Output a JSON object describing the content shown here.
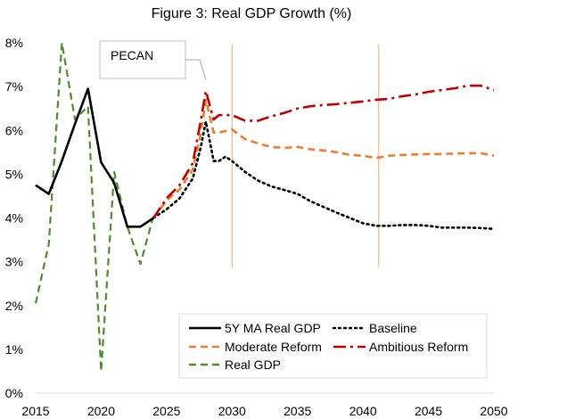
{
  "chart_data": {
    "type": "line",
    "title": "Figure 3: Real GDP Growth (%)",
    "xlabel": "",
    "ylabel": "",
    "xlim": [
      2015,
      2050
    ],
    "ylim": [
      0,
      8
    ],
    "x_ticks": [
      2015,
      2020,
      2025,
      2030,
      2035,
      2040,
      2045,
      2050
    ],
    "y_ticks": [
      0,
      1,
      2,
      3,
      4,
      5,
      6,
      7,
      8
    ],
    "y_tick_labels": [
      "0%",
      "1%",
      "2%",
      "3%",
      "4%",
      "5%",
      "6%",
      "7%",
      "8%"
    ],
    "grid": false,
    "legend_position": "bottom-right",
    "annotation": {
      "text": "PECAN",
      "points_to": [
        2028,
        7.1
      ]
    },
    "vertical_markers": [
      {
        "x": 2030,
        "color": "#f0b48c"
      },
      {
        "x": 2041.2,
        "color": "#f0b48c"
      }
    ],
    "series": [
      {
        "name": "5Y MA Real GDP",
        "color": "#000000",
        "style": "solid",
        "points": [
          [
            2015,
            4.75
          ],
          [
            2016,
            4.55
          ],
          [
            2017,
            5.3
          ],
          [
            2018,
            6.15
          ],
          [
            2019,
            6.95
          ],
          [
            2020,
            5.27
          ],
          [
            2021,
            4.8
          ],
          [
            2022,
            3.8
          ],
          [
            2023,
            3.8
          ],
          [
            2024,
            4.0
          ]
        ]
      },
      {
        "name": "Baseline",
        "color": "#000000",
        "style": "dotted",
        "points": [
          [
            2024,
            4.0
          ],
          [
            2025,
            4.2
          ],
          [
            2026,
            4.45
          ],
          [
            2027,
            4.9
          ],
          [
            2027.6,
            5.6
          ],
          [
            2028,
            6.2
          ],
          [
            2028.6,
            5.3
          ],
          [
            2029,
            5.3
          ],
          [
            2029.5,
            5.4
          ],
          [
            2030,
            5.3
          ],
          [
            2031,
            5.05
          ],
          [
            2032,
            4.85
          ],
          [
            2033,
            4.72
          ],
          [
            2034,
            4.64
          ],
          [
            2035,
            4.55
          ],
          [
            2036,
            4.38
          ],
          [
            2037,
            4.25
          ],
          [
            2038,
            4.12
          ],
          [
            2039,
            4.0
          ],
          [
            2040,
            3.88
          ],
          [
            2041,
            3.82
          ],
          [
            2042,
            3.82
          ],
          [
            2043,
            3.84
          ],
          [
            2044,
            3.84
          ],
          [
            2045,
            3.82
          ],
          [
            2046,
            3.78
          ],
          [
            2047,
            3.78
          ],
          [
            2048,
            3.78
          ],
          [
            2049,
            3.77
          ],
          [
            2050,
            3.75
          ]
        ]
      },
      {
        "name": "Moderate Reform",
        "color": "#ed7d31",
        "style": "dashed",
        "points": [
          [
            2024,
            4.0
          ],
          [
            2025,
            4.4
          ],
          [
            2026,
            4.65
          ],
          [
            2027,
            5.1
          ],
          [
            2027.6,
            5.9
          ],
          [
            2028,
            6.7
          ],
          [
            2028.6,
            5.95
          ],
          [
            2029,
            5.95
          ],
          [
            2030,
            6.02
          ],
          [
            2031,
            5.8
          ],
          [
            2032,
            5.7
          ],
          [
            2033,
            5.62
          ],
          [
            2034,
            5.6
          ],
          [
            2035,
            5.62
          ],
          [
            2036,
            5.57
          ],
          [
            2037,
            5.54
          ],
          [
            2038,
            5.5
          ],
          [
            2039,
            5.44
          ],
          [
            2040,
            5.42
          ],
          [
            2041,
            5.37
          ],
          [
            2042,
            5.42
          ],
          [
            2043,
            5.44
          ],
          [
            2044,
            5.45
          ],
          [
            2045,
            5.46
          ],
          [
            2046,
            5.46
          ],
          [
            2047,
            5.47
          ],
          [
            2048,
            5.48
          ],
          [
            2049,
            5.48
          ],
          [
            2050,
            5.42
          ]
        ]
      },
      {
        "name": "Ambitious Reform",
        "color": "#c00000",
        "style": "dashdot",
        "points": [
          [
            2024,
            4.0
          ],
          [
            2025,
            4.45
          ],
          [
            2026,
            4.75
          ],
          [
            2027,
            5.25
          ],
          [
            2027.6,
            6.2
          ],
          [
            2028,
            6.9
          ],
          [
            2028.6,
            6.25
          ],
          [
            2029,
            6.35
          ],
          [
            2030,
            6.35
          ],
          [
            2031,
            6.22
          ],
          [
            2032,
            6.22
          ],
          [
            2033,
            6.32
          ],
          [
            2034,
            6.4
          ],
          [
            2035,
            6.5
          ],
          [
            2036,
            6.55
          ],
          [
            2037,
            6.58
          ],
          [
            2038,
            6.6
          ],
          [
            2039,
            6.63
          ],
          [
            2040,
            6.66
          ],
          [
            2041,
            6.7
          ],
          [
            2042,
            6.72
          ],
          [
            2043,
            6.78
          ],
          [
            2044,
            6.82
          ],
          [
            2045,
            6.88
          ],
          [
            2046,
            6.92
          ],
          [
            2047,
            6.96
          ],
          [
            2048,
            7.02
          ],
          [
            2049,
            7.02
          ],
          [
            2050,
            6.92
          ]
        ]
      },
      {
        "name": "Real GDP",
        "color": "#4e8c2c",
        "style": "dashed",
        "points": [
          [
            2015,
            2.05
          ],
          [
            2016,
            3.4
          ],
          [
            2017,
            8.0
          ],
          [
            2018,
            6.25
          ],
          [
            2019,
            6.55
          ],
          [
            2020,
            0.5
          ],
          [
            2021,
            5.05
          ],
          [
            2022,
            3.8
          ],
          [
            2023,
            2.95
          ],
          [
            2024,
            4.05
          ]
        ]
      }
    ],
    "legend_rows": [
      [
        "5Y MA Real GDP",
        "Baseline"
      ],
      [
        "Moderate Reform",
        "Ambitious Reform"
      ],
      [
        "Real GDP"
      ]
    ]
  }
}
